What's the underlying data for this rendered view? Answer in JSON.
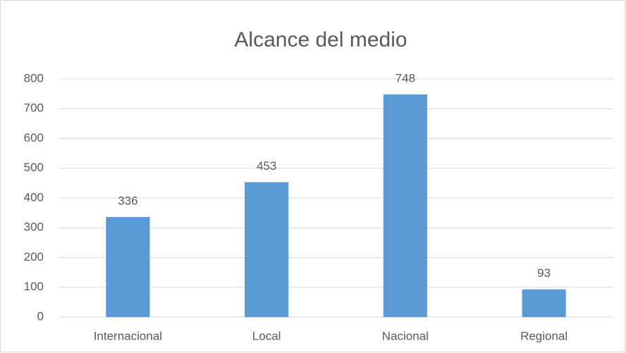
{
  "chart_data": {
    "type": "bar",
    "title": "Alcance del medio",
    "categories": [
      "Internacional",
      "Local",
      "Nacional",
      "Regional"
    ],
    "values": [
      336,
      453,
      748,
      93
    ],
    "color": "#5b9bd5",
    "ylim": [
      0,
      800
    ],
    "yticks": [
      0,
      100,
      200,
      300,
      400,
      500,
      600,
      700,
      800
    ],
    "grid": true
  }
}
